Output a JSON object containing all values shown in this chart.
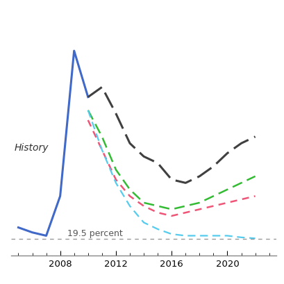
{
  "background_color": "#ffffff",
  "reference_line_y": 19.5,
  "reference_label": "19.5 percent",
  "history_label": "History",
  "series": {
    "history": {
      "years": [
        2005,
        2006,
        2007,
        2008,
        2009,
        2010
      ],
      "values": [
        19.85,
        19.7,
        19.6,
        20.8,
        25.2,
        23.8
      ],
      "color": "#4169c8",
      "linestyle": "solid",
      "linewidth": 2.2
    },
    "black_dash": {
      "years": [
        2010,
        2011,
        2012,
        2013,
        2014,
        2015,
        2016,
        2017,
        2018,
        2019,
        2020,
        2021,
        2022
      ],
      "values": [
        23.8,
        24.1,
        23.3,
        22.4,
        22.0,
        21.8,
        21.3,
        21.2,
        21.4,
        21.7,
        22.1,
        22.4,
        22.6
      ],
      "color": "#404040",
      "linestyle": "dashed",
      "linewidth": 2.2,
      "dash": [
        8,
        3
      ]
    },
    "green_dash": {
      "years": [
        2010,
        2011,
        2012,
        2013,
        2014,
        2015,
        2016,
        2017,
        2018,
        2019,
        2020,
        2021,
        2022
      ],
      "values": [
        23.4,
        22.6,
        21.6,
        21.0,
        20.6,
        20.5,
        20.4,
        20.5,
        20.6,
        20.8,
        21.0,
        21.2,
        21.4
      ],
      "color": "#33bb33",
      "linestyle": "dashed",
      "linewidth": 1.8,
      "dash": [
        6,
        3
      ]
    },
    "pink_dash": {
      "years": [
        2010,
        2011,
        2012,
        2013,
        2014,
        2015,
        2016,
        2017,
        2018,
        2019,
        2020,
        2021,
        2022
      ],
      "values": [
        23.1,
        22.2,
        21.3,
        20.8,
        20.5,
        20.3,
        20.2,
        20.3,
        20.4,
        20.5,
        20.6,
        20.7,
        20.8
      ],
      "color": "#ee5577",
      "linestyle": "dashed",
      "linewidth": 1.8,
      "dash": [
        4,
        3
      ]
    },
    "cyan_dash": {
      "years": [
        2010,
        2011,
        2012,
        2013,
        2014,
        2015,
        2016,
        2017,
        2018,
        2019,
        2020,
        2021,
        2022
      ],
      "values": [
        23.4,
        22.2,
        21.2,
        20.5,
        20.0,
        19.8,
        19.65,
        19.6,
        19.6,
        19.6,
        19.6,
        19.55,
        19.52
      ],
      "color": "#55ccee",
      "linestyle": "dashed",
      "linewidth": 1.6,
      "dash": [
        5,
        3
      ]
    }
  },
  "ylim": [
    19.0,
    26.5
  ],
  "xlim": [
    2004.5,
    2023.5
  ],
  "xticks": [
    2008,
    2012,
    2016,
    2020
  ],
  "spine_color": "#888888"
}
